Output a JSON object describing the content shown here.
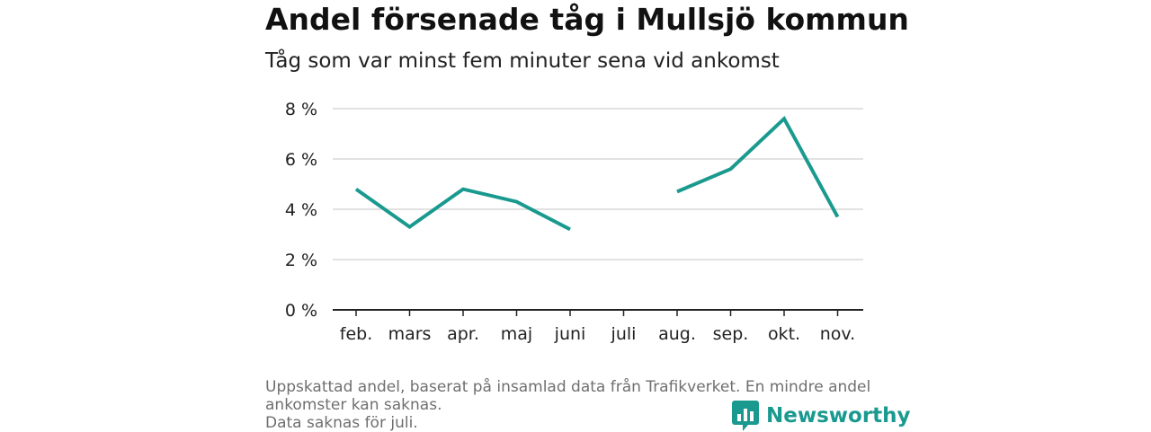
{
  "header": {
    "title": "Andel försenade tåg i Mullsjö kommun",
    "subtitle": "Tåg som var minst fem minuter sena vid ankomst"
  },
  "footnote": {
    "line1": "Uppskattad andel, baserat på insamlad data från Trafikverket. En mindre andel",
    "line2": "ankomster kan saknas.",
    "line3": "Data saknas för juli."
  },
  "brand": {
    "name": "Newsworthy",
    "icon": "newsworthy-logo-icon",
    "color": "#1a9a8f"
  },
  "chart_data": {
    "type": "line",
    "categories": [
      "feb.",
      "mars",
      "apr.",
      "maj",
      "juni",
      "juli",
      "aug.",
      "sep.",
      "okt.",
      "nov."
    ],
    "values": [
      4.8,
      3.3,
      4.8,
      4.3,
      3.2,
      null,
      4.7,
      5.6,
      7.6,
      3.7
    ],
    "ylim": [
      0,
      8
    ],
    "yticks": [
      0,
      2,
      4,
      6,
      8
    ],
    "ytick_labels": [
      "0 %",
      "2 %",
      "4 %",
      "6 %",
      "8 %"
    ],
    "grid": true,
    "line_color": "#1a9a8f",
    "grid_color": "#d9d9d9",
    "axis_color": "#222222"
  }
}
